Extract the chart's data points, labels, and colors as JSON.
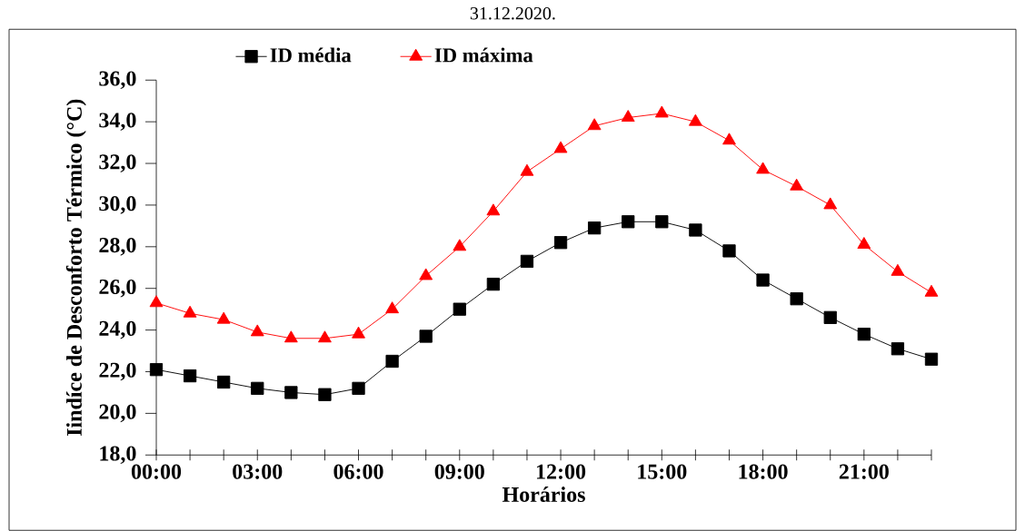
{
  "chart_data": {
    "type": "line",
    "title": "31.12.2020.",
    "xlabel": "Horários",
    "ylabel": "Iindíce de Desconforto Térmico (°C)",
    "x": [
      0,
      1,
      2,
      3,
      4,
      5,
      6,
      7,
      8,
      9,
      10,
      11,
      12,
      13,
      14,
      15,
      16,
      17,
      18,
      19,
      20,
      21,
      22,
      23
    ],
    "series": [
      {
        "name": "ID média",
        "color": "#000000",
        "marker": "square",
        "values": [
          22.1,
          21.8,
          21.5,
          21.2,
          21.0,
          20.9,
          21.2,
          22.5,
          23.7,
          25.0,
          26.2,
          27.3,
          28.2,
          28.9,
          29.2,
          29.2,
          28.8,
          27.8,
          26.4,
          25.5,
          24.6,
          23.8,
          23.1,
          22.6
        ]
      },
      {
        "name": "ID máxima",
        "color": "#ff0000",
        "marker": "triangle",
        "values": [
          25.3,
          24.8,
          24.5,
          23.9,
          23.6,
          23.6,
          23.8,
          25.0,
          26.6,
          28.0,
          29.7,
          31.6,
          32.7,
          33.8,
          34.2,
          34.4,
          34.0,
          33.1,
          31.7,
          30.9,
          30.0,
          28.1,
          26.8,
          25.8
        ]
      }
    ],
    "xlim": [
      0,
      23
    ],
    "xticks": [
      {
        "value": 0,
        "label": "00:00"
      },
      {
        "value": 1,
        "label": null
      },
      {
        "value": 2,
        "label": null
      },
      {
        "value": 3,
        "label": "03:00"
      },
      {
        "value": 4,
        "label": null
      },
      {
        "value": 5,
        "label": null
      },
      {
        "value": 6,
        "label": "06:00"
      },
      {
        "value": 7,
        "label": null
      },
      {
        "value": 8,
        "label": null
      },
      {
        "value": 9,
        "label": "09:00"
      },
      {
        "value": 10,
        "label": null
      },
      {
        "value": 11,
        "label": null
      },
      {
        "value": 12,
        "label": "12:00"
      },
      {
        "value": 13,
        "label": null
      },
      {
        "value": 14,
        "label": null
      },
      {
        "value": 15,
        "label": "15:00"
      },
      {
        "value": 16,
        "label": null
      },
      {
        "value": 17,
        "label": null
      },
      {
        "value": 18,
        "label": "18:00"
      },
      {
        "value": 19,
        "label": null
      },
      {
        "value": 20,
        "label": null
      },
      {
        "value": 21,
        "label": "21:00"
      },
      {
        "value": 22,
        "label": null
      },
      {
        "value": 23,
        "label": null
      }
    ],
    "ylim": [
      18,
      36
    ],
    "yticks": [
      {
        "value": 18,
        "label": "18,0"
      },
      {
        "value": 20,
        "label": "20,0"
      },
      {
        "value": 22,
        "label": "22,0"
      },
      {
        "value": 24,
        "label": "24,0"
      },
      {
        "value": 26,
        "label": "26,0"
      },
      {
        "value": 28,
        "label": "28,0"
      },
      {
        "value": 30,
        "label": "30,0"
      },
      {
        "value": 32,
        "label": "32,0"
      },
      {
        "value": 34,
        "label": "34,0"
      },
      {
        "value": 36,
        "label": "36,0"
      }
    ],
    "grid": false,
    "legend": "top"
  }
}
